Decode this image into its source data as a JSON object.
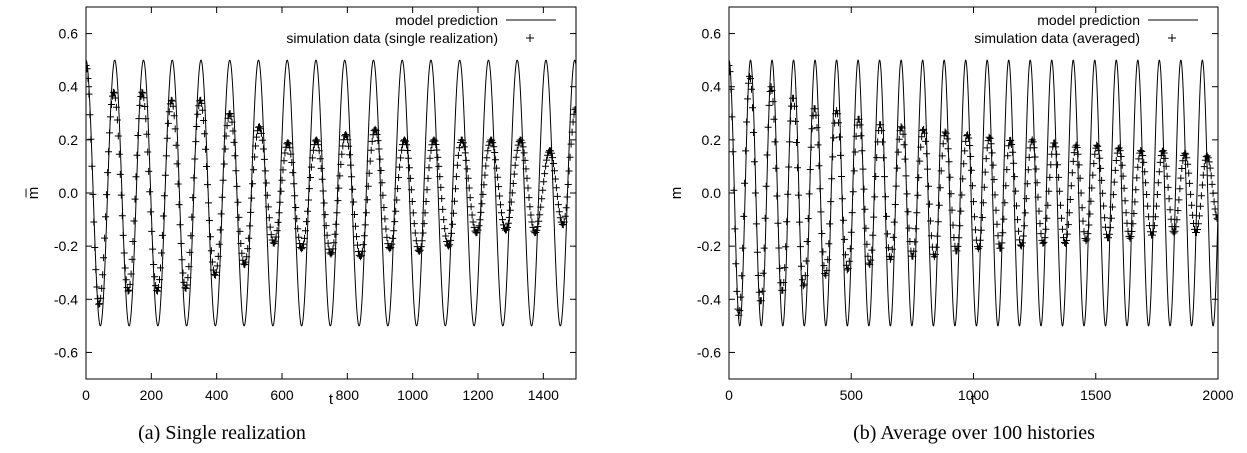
{
  "chart_data": [
    {
      "type": "line",
      "caption": "(a) Single realization",
      "xlabel": "t",
      "ylabel": "m̅",
      "xlim": [
        0,
        1500
      ],
      "ylim": [
        -0.7,
        0.7
      ],
      "x_ticks": [
        0,
        200,
        400,
        600,
        800,
        1000,
        1200,
        1400
      ],
      "y_ticks": [
        -0.6,
        -0.4,
        -0.2,
        0.0,
        0.2,
        0.4,
        0.6
      ],
      "y_tick_labels": [
        "-0.6",
        "-0.4",
        "-0.2",
        "0.0",
        "0.2",
        "0.4",
        "0.6"
      ],
      "grid": false,
      "legend_position": "top-right",
      "series": [
        {
          "name": "model prediction",
          "style": "line",
          "model": {
            "amplitude": 0.5,
            "period": 88
          }
        },
        {
          "name": "simulation data (single realization)",
          "style": "marker-plus",
          "period": 88,
          "extrema": [
            [
              0,
              0.48
            ],
            [
              40,
              -0.42
            ],
            [
              85,
              0.38
            ],
            [
              130,
              -0.37
            ],
            [
              172,
              0.38
            ],
            [
              218,
              -0.37
            ],
            [
              262,
              0.35
            ],
            [
              305,
              -0.36
            ],
            [
              350,
              0.35
            ],
            [
              395,
              -0.31
            ],
            [
              440,
              0.3
            ],
            [
              485,
              -0.27
            ],
            [
              530,
              0.25
            ],
            [
              575,
              -0.19
            ],
            [
              618,
              0.19
            ],
            [
              660,
              -0.21
            ],
            [
              705,
              0.2
            ],
            [
              750,
              -0.23
            ],
            [
              795,
              0.22
            ],
            [
              840,
              -0.24
            ],
            [
              885,
              0.24
            ],
            [
              930,
              -0.21
            ],
            [
              975,
              0.2
            ],
            [
              1020,
              -0.22
            ],
            [
              1065,
              0.2
            ],
            [
              1110,
              -0.2
            ],
            [
              1150,
              0.2
            ],
            [
              1195,
              -0.15
            ],
            [
              1240,
              0.2
            ],
            [
              1285,
              -0.14
            ],
            [
              1330,
              0.2
            ],
            [
              1375,
              -0.15
            ],
            [
              1420,
              0.16
            ],
            [
              1460,
              -0.12
            ],
            [
              1500,
              0.32
            ]
          ]
        }
      ]
    },
    {
      "type": "line",
      "caption": "(b) Average over 100 histories",
      "xlabel": "t",
      "ylabel": "m",
      "xlim": [
        0,
        2000
      ],
      "ylim": [
        -0.7,
        0.7
      ],
      "x_ticks": [
        0,
        500,
        1000,
        1500,
        2000
      ],
      "y_ticks": [
        -0.6,
        -0.4,
        -0.2,
        0.0,
        0.2,
        0.4,
        0.6
      ],
      "y_tick_labels": [
        "-0.6",
        "-0.4",
        "-0.2",
        "0.0",
        "0.2",
        "0.4",
        "0.6"
      ],
      "grid": false,
      "legend_position": "top-right",
      "series": [
        {
          "name": "model prediction",
          "style": "line",
          "model": {
            "amplitude": 0.5,
            "period": 88
          }
        },
        {
          "name": "simulation data (averaged)",
          "style": "marker-plus",
          "period": 88,
          "extrema": [
            [
              0,
              0.48
            ],
            [
              40,
              -0.46
            ],
            [
              85,
              0.44
            ],
            [
              130,
              -0.41
            ],
            [
              172,
              0.4
            ],
            [
              218,
              -0.37
            ],
            [
              262,
              0.36
            ],
            [
              305,
              -0.35
            ],
            [
              350,
              0.32
            ],
            [
              395,
              -0.31
            ],
            [
              440,
              0.31
            ],
            [
              485,
              -0.29
            ],
            [
              530,
              0.28
            ],
            [
              575,
              -0.27
            ],
            [
              618,
              0.26
            ],
            [
              660,
              -0.25
            ],
            [
              705,
              0.25
            ],
            [
              750,
              -0.24
            ],
            [
              795,
              0.24
            ],
            [
              840,
              -0.24
            ],
            [
              885,
              0.23
            ],
            [
              930,
              -0.22
            ],
            [
              975,
              0.22
            ],
            [
              1020,
              -0.21
            ],
            [
              1065,
              0.21
            ],
            [
              1110,
              -0.21
            ],
            [
              1150,
              0.2
            ],
            [
              1195,
              -0.2
            ],
            [
              1240,
              0.2
            ],
            [
              1285,
              -0.19
            ],
            [
              1330,
              0.19
            ],
            [
              1375,
              -0.19
            ],
            [
              1420,
              0.18
            ],
            [
              1460,
              -0.18
            ],
            [
              1505,
              0.18
            ],
            [
              1550,
              -0.17
            ],
            [
              1595,
              0.17
            ],
            [
              1640,
              -0.17
            ],
            [
              1685,
              0.16
            ],
            [
              1730,
              -0.16
            ],
            [
              1775,
              0.16
            ],
            [
              1820,
              -0.15
            ],
            [
              1865,
              0.15
            ],
            [
              1910,
              -0.15
            ],
            [
              1955,
              0.14
            ],
            [
              2000,
              -0.1
            ]
          ]
        }
      ]
    }
  ]
}
